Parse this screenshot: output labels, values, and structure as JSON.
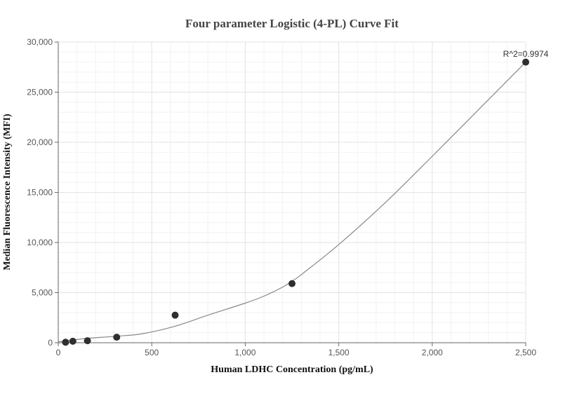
{
  "chart_data": {
    "type": "scatter",
    "title": "Four parameter Logistic (4-PL) Curve Fit",
    "xlabel": "Human LDHC Concentration (pg/mL)",
    "ylabel": "Median Fluorescence Intensity (MFI)",
    "xlim": [
      0,
      2500
    ],
    "ylim": [
      0,
      30000
    ],
    "x_ticks": [
      0,
      500,
      1000,
      1500,
      2000,
      2500
    ],
    "x_tick_labels": [
      "0",
      "500",
      "1,000",
      "1,500",
      "2,000",
      "2,500"
    ],
    "y_ticks": [
      0,
      5000,
      10000,
      15000,
      20000,
      25000,
      30000
    ],
    "y_tick_labels": [
      "0",
      "5,000",
      "10,000",
      "15,000",
      "20,000",
      "25,000",
      "30,000"
    ],
    "grid": true,
    "annotation": "R^2=0.9974",
    "series": [
      {
        "kind": "points",
        "x": [
          39,
          78,
          156,
          312.5,
          625,
          1250,
          2500
        ],
        "y": [
          50,
          150,
          200,
          550,
          2750,
          5900,
          28000
        ],
        "color": "#2f2f2f"
      },
      {
        "kind": "fit-curve",
        "x": [
          0,
          40,
          80,
          160,
          312.5,
          450,
          625,
          800,
          1000,
          1100,
          1200,
          1250,
          1300,
          1500,
          1750,
          2000,
          2250,
          2500
        ],
        "y": [
          100,
          180,
          280,
          450,
          650,
          900,
          1650,
          2750,
          3950,
          4650,
          5550,
          6150,
          6800,
          9800,
          14000,
          18600,
          23300,
          28000
        ],
        "color": "#888888"
      }
    ]
  }
}
